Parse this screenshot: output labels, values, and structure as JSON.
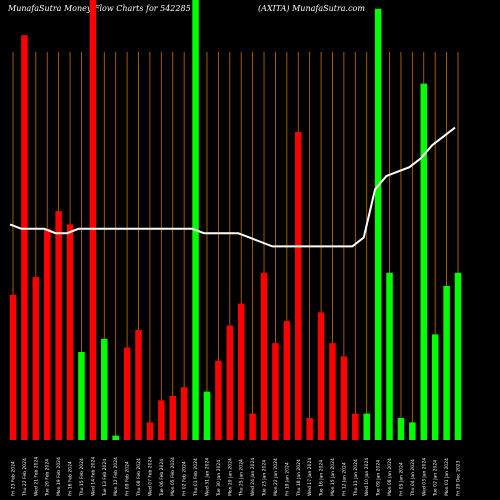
{
  "header": {
    "left": "MunafaSutra  Money  Flow  Charts for 542285",
    "right": "(AXITA) MunafaSutra.com"
  },
  "chart_data": {
    "type": "bar",
    "ylim": [
      0,
      100
    ],
    "up_color": "#00ff00",
    "down_color": "#ff0000",
    "guide_color": "#c87000",
    "line_color": "#ffffff",
    "bars": [
      {
        "label": "Fri 23 Feb 2024",
        "value": 33,
        "color": "red"
      },
      {
        "label": "Thu 22 Feb 2024",
        "value": 92,
        "color": "red"
      },
      {
        "label": "Wed 21 Feb 2024",
        "value": 37,
        "color": "red"
      },
      {
        "label": "Tue 20 Feb 2024",
        "value": 48,
        "color": "red"
      },
      {
        "label": "Mon 19 Feb 2024",
        "value": 52,
        "color": "red"
      },
      {
        "label": "Fri 16 Feb 2024",
        "value": 49,
        "color": "red"
      },
      {
        "label": "Thu 15 Feb 2024",
        "value": 20,
        "color": "green"
      },
      {
        "label": "Wed 14 Feb 2024",
        "value": 100,
        "color": "red"
      },
      {
        "label": "Tue 13 Feb 2024",
        "value": 23,
        "color": "green"
      },
      {
        "label": "Mon 12 Feb 2024",
        "value": 1,
        "color": "green"
      },
      {
        "label": "Fri 09 Feb 2024",
        "value": 21,
        "color": "red"
      },
      {
        "label": "Thu 08 Feb 2024",
        "value": 25,
        "color": "red"
      },
      {
        "label": "Wed 07 Feb 2024",
        "value": 4,
        "color": "red"
      },
      {
        "label": "Tue 06 Feb 2024",
        "value": 9,
        "color": "red"
      },
      {
        "label": "Mon 05 Feb 2024",
        "value": 10,
        "color": "red"
      },
      {
        "label": "Fri 02 Feb 2024",
        "value": 12,
        "color": "red"
      },
      {
        "label": "Thu 01 Feb 2024",
        "value": 100,
        "color": "green"
      },
      {
        "label": "Wed 31 Jan 2024",
        "value": 11,
        "color": "green"
      },
      {
        "label": "Tue 30 Jan 2024",
        "value": 18,
        "color": "red"
      },
      {
        "label": "Mon 29 Jan 2024",
        "value": 26,
        "color": "red"
      },
      {
        "label": "Thu 25 Jan 2024",
        "value": 31,
        "color": "red"
      },
      {
        "label": "Wed 24 Jan 2024",
        "value": 6,
        "color": "red"
      },
      {
        "label": "Tue 23 Jan 2024",
        "value": 38,
        "color": "red"
      },
      {
        "label": "Mon 22 Jan 2024",
        "value": 22,
        "color": "red"
      },
      {
        "label": "Fri 19 Jan 2024",
        "value": 27,
        "color": "red"
      },
      {
        "label": "Thu 18 Jan 2024",
        "value": 70,
        "color": "red"
      },
      {
        "label": "Wed 17 Jan 2024",
        "value": 5,
        "color": "red"
      },
      {
        "label": "Tue 16 Jan 2024",
        "value": 29,
        "color": "red"
      },
      {
        "label": "Mon 15 Jan 2024",
        "value": 22,
        "color": "red"
      },
      {
        "label": "Fri 12 Jan 2024",
        "value": 19,
        "color": "red"
      },
      {
        "label": "Thu 11 Jan 2024",
        "value": 6,
        "color": "red"
      },
      {
        "label": "Wed 10 Jan 2024",
        "value": 6,
        "color": "green"
      },
      {
        "label": "Tue 09 Jan 2024",
        "value": 98,
        "color": "green"
      },
      {
        "label": "Mon 08 Jan 2024",
        "value": 38,
        "color": "green"
      },
      {
        "label": "Fri 05 Jan 2024",
        "value": 5,
        "color": "green"
      },
      {
        "label": "Thu 04 Jan 2024",
        "value": 4,
        "color": "green"
      },
      {
        "label": "Wed 03 Jan 2024",
        "value": 81,
        "color": "green"
      },
      {
        "label": "Tue 02 Jan 2024",
        "value": 24,
        "color": "green"
      },
      {
        "label": "Mon 01 Jan 2024",
        "value": 35,
        "color": "green"
      },
      {
        "label": "Fri 29 Dec 2023",
        "value": 38,
        "color": "green"
      }
    ],
    "line": [
      49,
      48,
      48,
      48,
      47,
      47,
      48,
      48,
      48,
      48,
      48,
      48,
      48,
      48,
      48,
      48,
      48,
      47,
      47,
      47,
      47,
      46,
      45,
      44,
      44,
      44,
      44,
      44,
      44,
      44,
      44,
      46,
      57,
      60,
      61,
      62,
      64,
      67,
      69,
      71
    ]
  }
}
